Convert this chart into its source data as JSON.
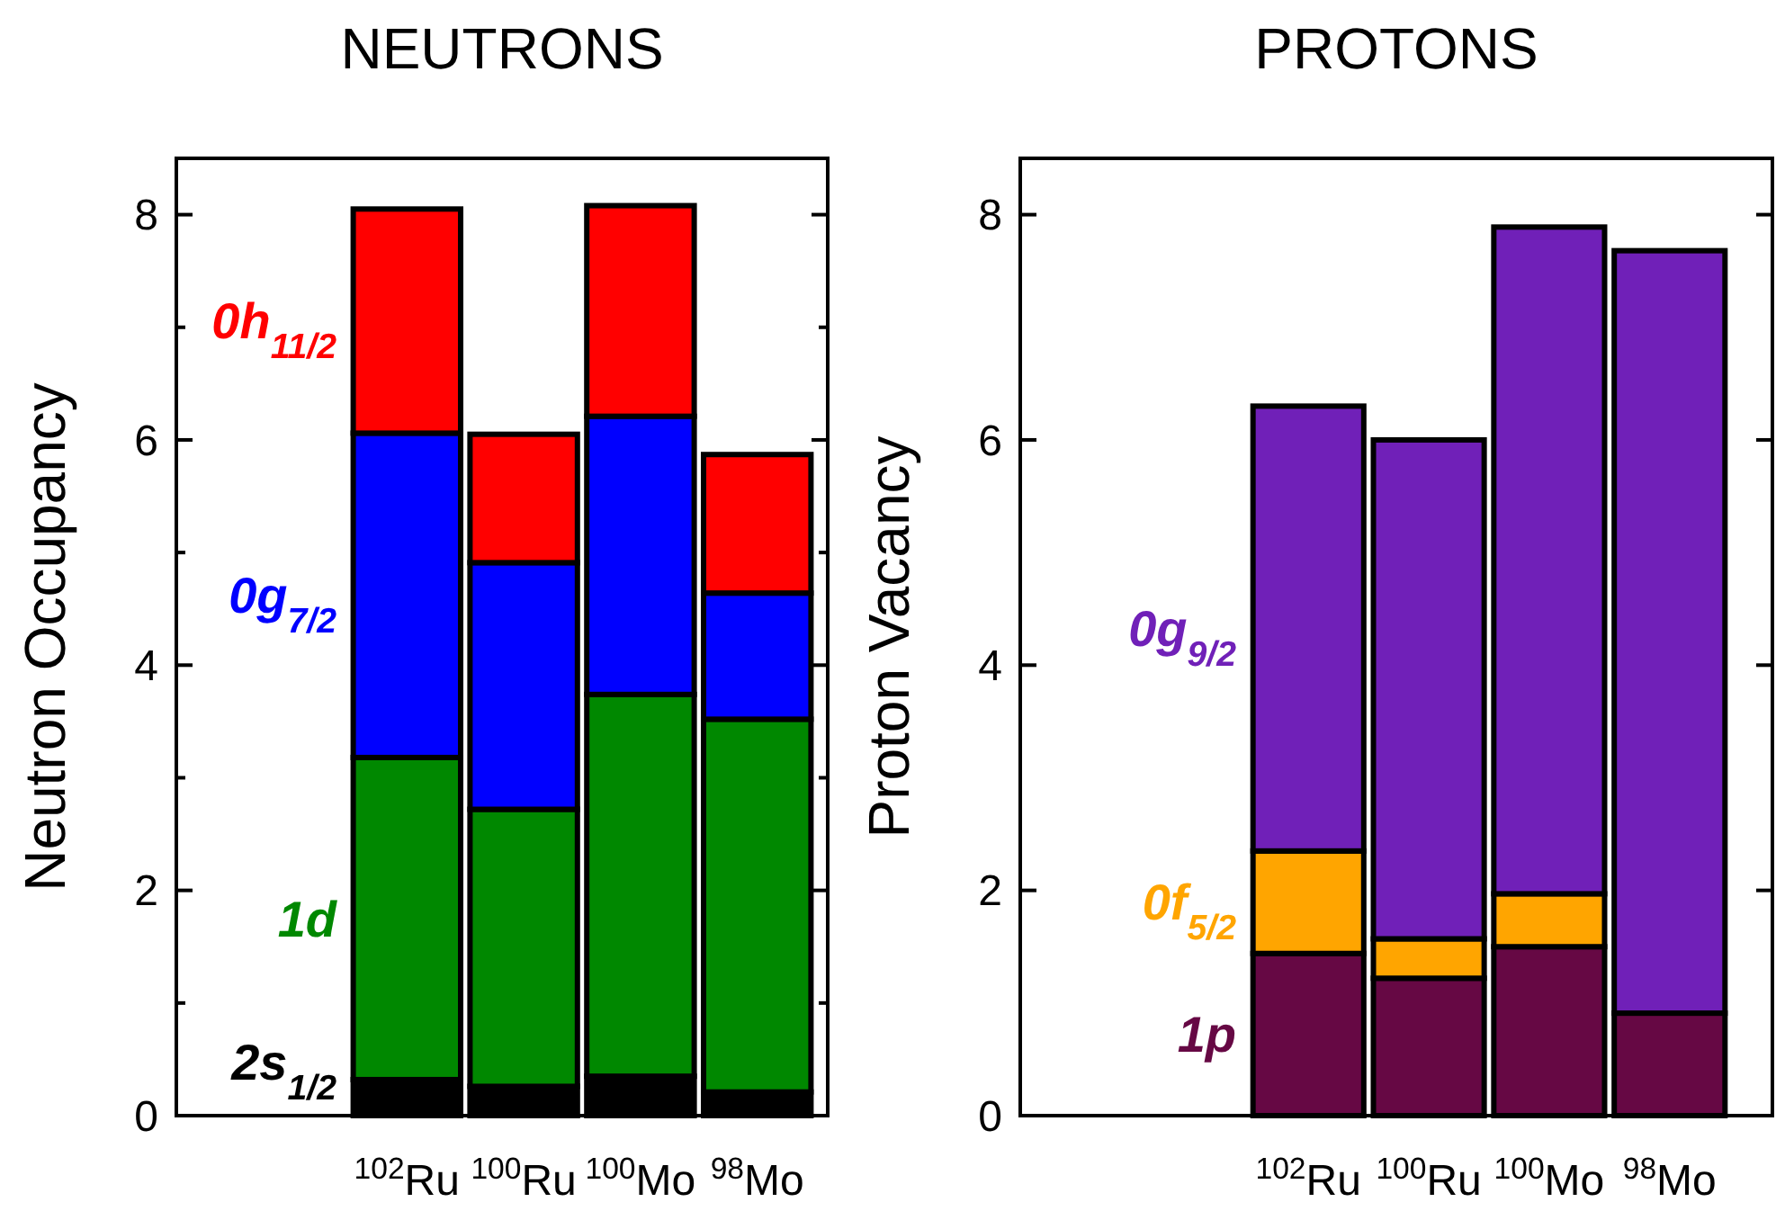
{
  "chart_data": [
    {
      "type": "bar",
      "stacked": true,
      "title": "NEUTRONS",
      "ylabel": "Neutron Occupancy",
      "categories": [
        "$^{102}$Ru",
        "$^{100}$Ru",
        "$^{100}$Mo",
        "$^{98}$Mo"
      ],
      "ylim": [
        0,
        8.5
      ],
      "yticks": [
        0,
        {
          "value": 1,
          "label": null
        },
        2,
        {
          "value": 3,
          "label": null
        },
        4,
        {
          "value": 5,
          "label": null
        },
        6,
        {
          "value": 7,
          "label": null
        },
        8
      ],
      "legend": false,
      "series": [
        {
          "name": "2s$_{1/2}$",
          "color": "#000000",
          "values": [
            0.32,
            0.26,
            0.35,
            0.21
          ]
        },
        {
          "name": "1d",
          "color": "#008800",
          "values": [
            2.86,
            2.46,
            3.39,
            3.31
          ]
        },
        {
          "name": "0g$_{7/2}$",
          "color": "#0000ff",
          "values": [
            2.88,
            2.19,
            2.47,
            1.12
          ]
        },
        {
          "name": "0h$_{11/2}$",
          "color": "#ff0000",
          "values": [
            1.99,
            1.14,
            1.87,
            1.23
          ]
        }
      ]
    },
    {
      "type": "bar",
      "stacked": true,
      "title": "PROTONS",
      "ylabel": "Proton Vacancy",
      "categories": [
        "$^{102}$Ru",
        "$^{100}$Ru",
        "$^{100}$Mo",
        "$^{98}$Mo"
      ],
      "ylim": [
        0,
        8.5
      ],
      "yticks": [
        0,
        2,
        4,
        6,
        8
      ],
      "legend": false,
      "series": [
        {
          "name": "1p",
          "color": "#660844",
          "values": [
            1.44,
            1.22,
            1.5,
            0.91
          ]
        },
        {
          "name": "0f$_{5/2}$",
          "color": "#ffa500",
          "values": [
            0.91,
            0.35,
            0.47,
            0
          ]
        },
        {
          "name": "0g$_{9/2}$",
          "color": "#7020b8",
          "values": [
            3.95,
            4.43,
            5.92,
            6.77
          ]
        }
      ]
    }
  ]
}
